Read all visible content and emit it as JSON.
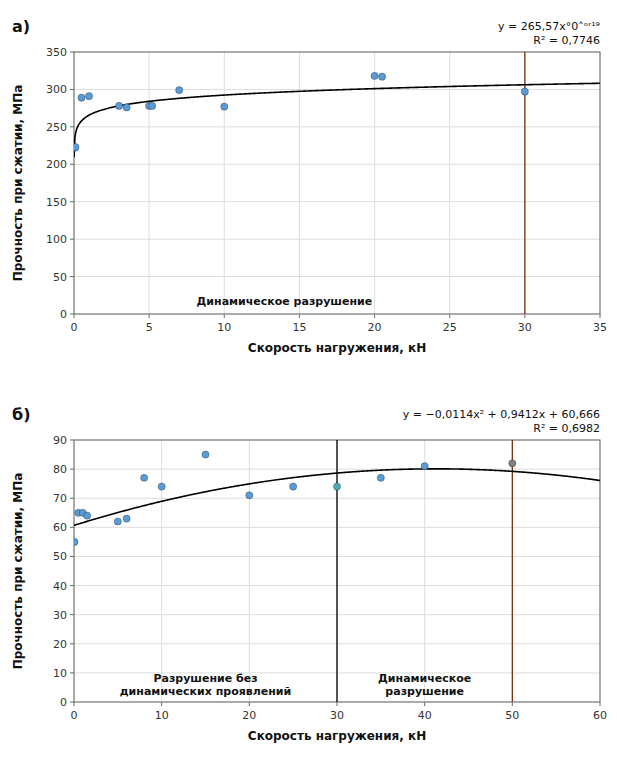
{
  "chart_data": [
    {
      "type": "scatter",
      "title": "а)",
      "x_label": "Скорость нагружения, кН",
      "y_label": "Прочность при сжатии, МПа",
      "series": [
        {
          "color": "#5B9BD5",
          "x": [
            0.05,
            0.1,
            0.5,
            1.0,
            3.0,
            3.5,
            5.0,
            5.2,
            7.0,
            10.0,
            20.0,
            20.5,
            30.0
          ],
          "values": [
            222,
            223,
            289,
            291,
            278,
            276,
            278,
            278,
            299,
            277,
            318,
            317,
            297
          ]
        }
      ],
      "trendline": {
        "type": "power",
        "coeff": 265.57,
        "exp": 0.0419,
        "color": "#000000"
      },
      "vlines": [
        {
          "x": 30,
          "color": "#7B3010"
        }
      ],
      "annotations": [
        {
          "text": "y = 265,57x°0˄ᵒʳ¹⁹"
        },
        {
          "text": "R² = 0,7746"
        },
        {
          "text": "Динамическое разрушение",
          "x": 14.0,
          "y": 18.0
        }
      ],
      "xlim": [
        0,
        35
      ],
      "ylim": [
        0,
        350
      ],
      "xticks": [
        0,
        5,
        10,
        15,
        20,
        25,
        30,
        35
      ],
      "yticks": [
        0,
        50,
        100,
        150,
        200,
        250,
        300,
        350
      ],
      "grid": true
    },
    {
      "type": "scatter",
      "title": "б)",
      "x_label": "Скорость нагружения, кН",
      "y_label": "Прочность при сжатии, МПа",
      "series": [
        {
          "color": "#5B9BD5",
          "x": [
            0.05,
            0.5,
            1.0,
            1.5,
            5.0,
            6.0,
            8.0,
            10.0,
            15.0,
            20.0,
            25.0,
            35.0,
            40.0
          ],
          "values": [
            55,
            65,
            65,
            64,
            62,
            63,
            77,
            74,
            85,
            71,
            74,
            77,
            81
          ]
        },
        {
          "color": "#4BADB0",
          "x": [
            30.0
          ],
          "values": [
            74
          ]
        },
        {
          "color": "#808080",
          "x": [
            50.0
          ],
          "values": [
            82
          ]
        }
      ],
      "trendline": {
        "type": "quadratic",
        "a": -0.0114,
        "b": 0.9412,
        "c": 60.666,
        "color": "#000000"
      },
      "vlines": [
        {
          "x": 30,
          "color": "#000000"
        },
        {
          "x": 50,
          "color": "#7B3010"
        }
      ],
      "annotations": [
        {
          "text": "y = −0,0114x² + 0,9412x + 60,666"
        },
        {
          "text": "R² = 0,6982"
        },
        {
          "text": "Разрушение без\nдинамических проявлений",
          "x": 15.0,
          "y": 6.0
        },
        {
          "text": "Динамическое\nразрушение",
          "x": 40.0,
          "y": 6.0
        }
      ],
      "xlim": [
        0,
        60
      ],
      "ylim": [
        0,
        90
      ],
      "xticks": [
        0,
        10,
        20,
        30,
        40,
        50,
        60
      ],
      "yticks": [
        0,
        10,
        20,
        30,
        40,
        50,
        60,
        70,
        80,
        90
      ],
      "grid": true
    }
  ]
}
